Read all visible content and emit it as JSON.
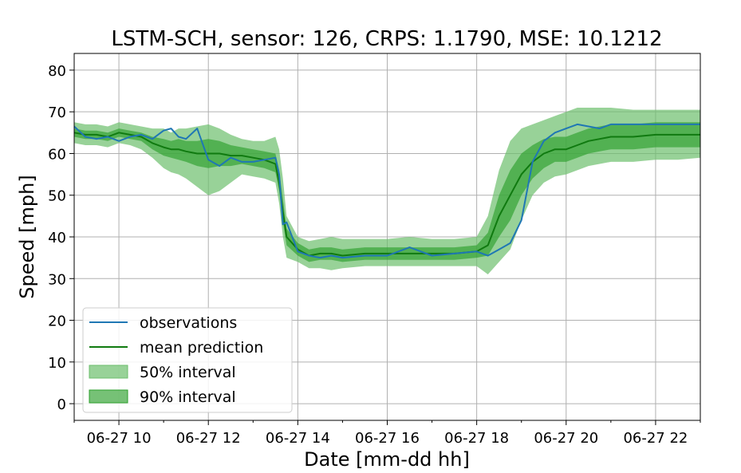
{
  "chart_data": {
    "type": "line",
    "title": "LSTM-SCH, sensor: 126, CRPS: 1.1790, MSE: 10.1212",
    "xlabel": "Date [mm-dd hh]",
    "ylabel": "Speed [mph]",
    "xlim": [
      "06-27 09:00",
      "06-27 23:00"
    ],
    "ylim": [
      -4,
      84
    ],
    "x_ticks": [
      "06-27 10",
      "06-27 12",
      "06-27 14",
      "06-27 16",
      "06-27 18",
      "06-27 20",
      "06-27 22"
    ],
    "y_ticks": [
      0,
      10,
      20,
      30,
      40,
      50,
      60,
      70,
      80
    ],
    "grid": true,
    "legend_position": "lower-left",
    "legend": [
      "observations",
      "mean prediction",
      "50% interval",
      "90% interval"
    ],
    "colors": {
      "observations": "#1f77b4",
      "mean_prediction": "#107a10",
      "interval_50": "#6cbf6c",
      "interval_90": "#2ca02c"
    },
    "x": [
      "09:00",
      "09:15",
      "09:30",
      "09:45",
      "10:00",
      "10:15",
      "10:30",
      "10:45",
      "11:00",
      "11:10",
      "11:20",
      "11:30",
      "11:45",
      "12:00",
      "12:15",
      "12:30",
      "12:45",
      "13:00",
      "13:15",
      "13:30",
      "13:35",
      "13:40",
      "13:45",
      "14:00",
      "14:15",
      "14:30",
      "14:45",
      "15:00",
      "15:30",
      "16:00",
      "16:30",
      "17:00",
      "17:30",
      "18:00",
      "18:15",
      "18:30",
      "18:45",
      "19:00",
      "19:15",
      "19:30",
      "19:45",
      "20:00",
      "20:15",
      "20:30",
      "20:45",
      "21:00",
      "21:30",
      "22:00",
      "22:30",
      "23:00"
    ],
    "series": [
      {
        "name": "observations",
        "values": [
          66.5,
          64.0,
          63.5,
          64.0,
          63.0,
          64.0,
          64.5,
          63.5,
          65.5,
          66.0,
          64.0,
          63.5,
          66.0,
          58.5,
          57.0,
          59.0,
          58.0,
          58.0,
          58.5,
          59.0,
          55.0,
          43.0,
          43.5,
          36.5,
          35.5,
          35.0,
          35.5,
          35.0,
          35.5,
          35.5,
          37.5,
          35.5,
          36.0,
          36.5,
          35.5,
          37.0,
          38.5,
          44.0,
          58.0,
          63.0,
          65.0,
          66.0,
          67.0,
          66.5,
          66.0,
          67.0,
          67.0,
          67.0,
          67.0,
          67.0
        ]
      },
      {
        "name": "mean prediction",
        "values": [
          65.0,
          64.5,
          64.5,
          64.0,
          65.0,
          64.5,
          64.0,
          62.5,
          61.5,
          61.0,
          61.0,
          60.5,
          60.0,
          60.0,
          60.0,
          59.5,
          59.5,
          59.0,
          58.5,
          57.5,
          53.0,
          46.0,
          40.0,
          37.0,
          35.5,
          36.0,
          36.0,
          35.5,
          36.0,
          36.0,
          36.0,
          36.0,
          36.0,
          36.5,
          38.0,
          45.0,
          50.0,
          55.0,
          58.0,
          60.0,
          61.0,
          61.0,
          62.0,
          63.0,
          63.5,
          64.0,
          64.0,
          64.5,
          64.5,
          64.5
        ]
      },
      {
        "name": "50% interval",
        "lower": [
          64.0,
          63.5,
          63.5,
          63.0,
          64.0,
          63.5,
          63.0,
          61.0,
          59.5,
          59.0,
          58.5,
          58.0,
          57.0,
          56.5,
          57.0,
          57.0,
          57.5,
          57.0,
          56.5,
          55.5,
          51.0,
          43.5,
          38.0,
          35.5,
          34.0,
          34.5,
          34.5,
          34.0,
          34.5,
          34.5,
          34.5,
          34.5,
          34.5,
          35.0,
          35.5,
          40.0,
          44.0,
          50.0,
          54.0,
          56.5,
          58.0,
          58.0,
          59.0,
          60.0,
          60.5,
          61.0,
          61.0,
          61.5,
          61.5,
          61.5
        ],
        "upper": [
          66.0,
          65.5,
          65.5,
          65.0,
          66.0,
          65.5,
          65.0,
          64.0,
          63.5,
          63.0,
          63.5,
          63.0,
          63.0,
          63.5,
          63.0,
          62.0,
          61.5,
          61.0,
          60.5,
          60.0,
          56.0,
          49.0,
          42.0,
          38.5,
          37.0,
          37.5,
          37.5,
          37.0,
          37.5,
          37.5,
          37.5,
          37.5,
          37.5,
          38.0,
          41.0,
          50.0,
          56.0,
          60.0,
          62.0,
          63.5,
          64.0,
          64.0,
          65.0,
          66.0,
          66.5,
          67.0,
          67.0,
          67.5,
          67.5,
          67.5
        ]
      },
      {
        "name": "90% interval",
        "lower": [
          62.5,
          62.0,
          62.0,
          61.5,
          62.5,
          62.0,
          61.0,
          59.0,
          56.5,
          55.5,
          55.0,
          54.0,
          52.0,
          50.0,
          51.0,
          53.0,
          55.0,
          54.5,
          54.0,
          53.0,
          48.0,
          40.0,
          35.0,
          34.0,
          32.5,
          32.5,
          32.0,
          32.5,
          33.0,
          33.0,
          33.0,
          33.0,
          33.0,
          33.0,
          31.0,
          34.0,
          37.0,
          44.0,
          50.0,
          53.0,
          54.5,
          55.0,
          56.0,
          57.0,
          57.5,
          58.0,
          58.0,
          58.5,
          58.5,
          59.0
        ],
        "upper": [
          67.5,
          67.0,
          67.0,
          66.5,
          67.5,
          67.0,
          66.5,
          66.0,
          66.0,
          65.0,
          66.0,
          66.0,
          66.5,
          67.0,
          66.0,
          64.5,
          63.5,
          63.0,
          63.0,
          64.0,
          61.0,
          54.0,
          45.0,
          40.0,
          39.0,
          39.5,
          40.0,
          39.5,
          39.5,
          39.5,
          40.0,
          39.5,
          39.5,
          40.0,
          45.0,
          56.0,
          63.0,
          66.0,
          67.0,
          68.0,
          69.0,
          70.0,
          71.0,
          71.0,
          71.0,
          71.0,
          70.5,
          70.5,
          70.5,
          70.5
        ]
      }
    ]
  }
}
